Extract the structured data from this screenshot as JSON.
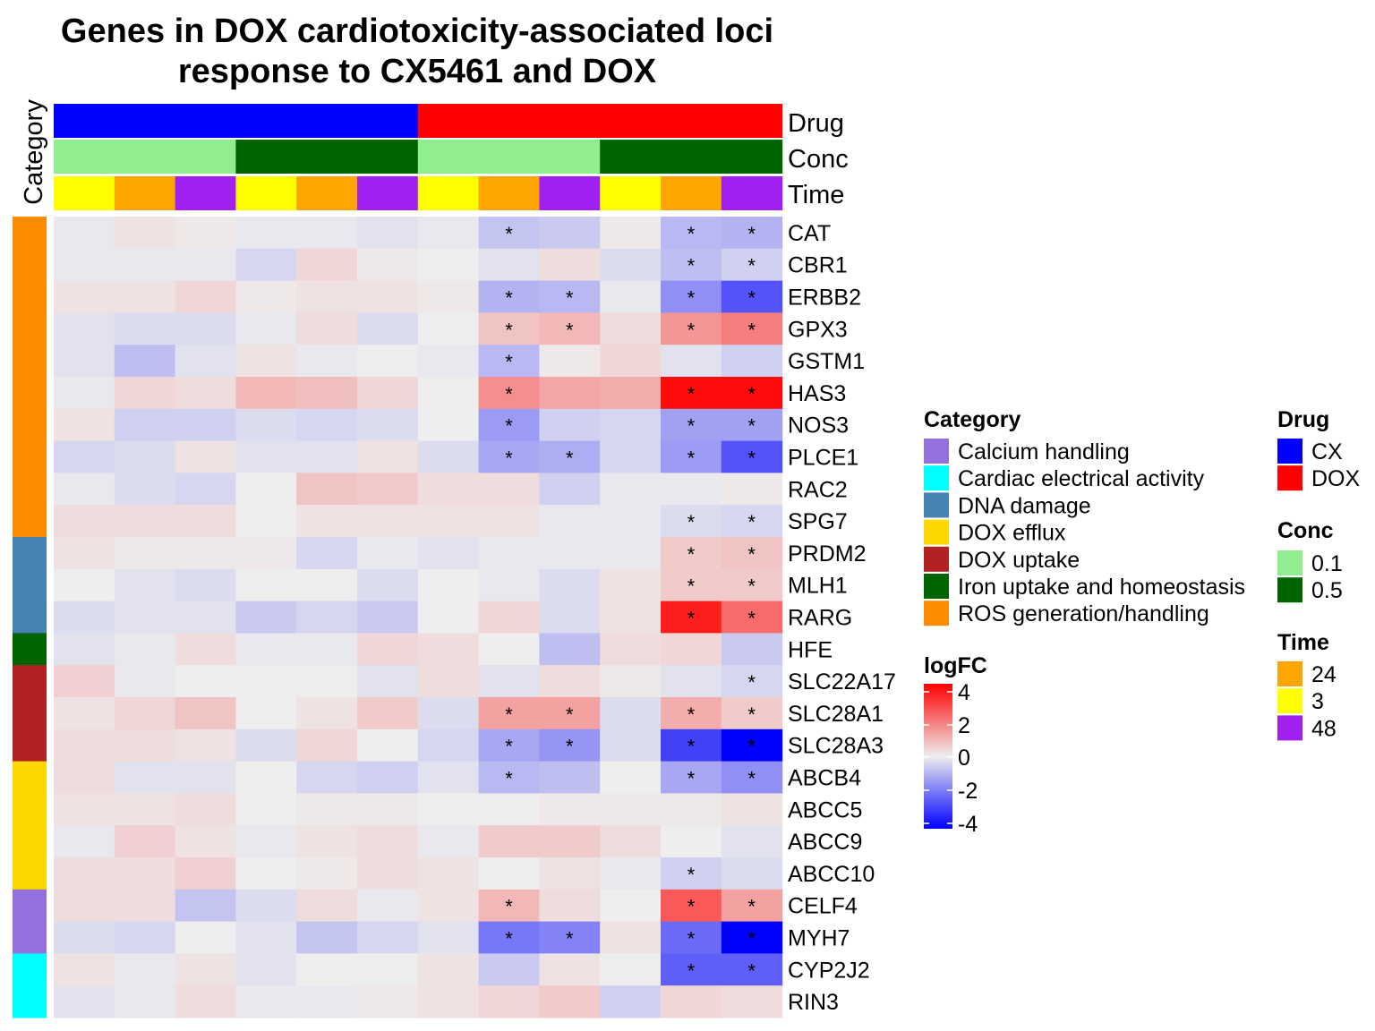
{
  "chart_data": {
    "type": "heatmap",
    "title_line1": "Genes in DOX cardiotoxicity-associated loci",
    "title_line2": "response to CX5461 and DOX",
    "category_axis_label": "Category",
    "annotation_labels": {
      "drug": "Drug",
      "conc": "Conc",
      "time": "Time"
    },
    "columns": [
      {
        "drug": "CX",
        "conc": "0.1",
        "time": "3"
      },
      {
        "drug": "CX",
        "conc": "0.1",
        "time": "24"
      },
      {
        "drug": "CX",
        "conc": "0.1",
        "time": "48"
      },
      {
        "drug": "CX",
        "conc": "0.5",
        "time": "3"
      },
      {
        "drug": "CX",
        "conc": "0.5",
        "time": "24"
      },
      {
        "drug": "CX",
        "conc": "0.5",
        "time": "48"
      },
      {
        "drug": "DOX",
        "conc": "0.1",
        "time": "3"
      },
      {
        "drug": "DOX",
        "conc": "0.1",
        "time": "24"
      },
      {
        "drug": "DOX",
        "conc": "0.1",
        "time": "48"
      },
      {
        "drug": "DOX",
        "conc": "0.5",
        "time": "3"
      },
      {
        "drug": "DOX",
        "conc": "0.5",
        "time": "24"
      },
      {
        "drug": "DOX",
        "conc": "0.5",
        "time": "48"
      }
    ],
    "rows": [
      {
        "gene": "CAT",
        "category": "ROS generation/handling",
        "values": [
          -0.1,
          0.2,
          0.1,
          -0.1,
          -0.1,
          -0.2,
          -0.1,
          -0.7,
          -0.6,
          0.1,
          -0.9,
          -1.0
        ],
        "sig": [
          0,
          0,
          0,
          0,
          0,
          0,
          0,
          1,
          0,
          0,
          1,
          1
        ]
      },
      {
        "gene": "CBR1",
        "category": "ROS generation/handling",
        "values": [
          -0.1,
          -0.1,
          -0.1,
          -0.4,
          0.4,
          0.1,
          0.0,
          -0.2,
          0.3,
          -0.3,
          -0.8,
          -0.5
        ],
        "sig": [
          0,
          0,
          0,
          0,
          0,
          0,
          0,
          0,
          0,
          0,
          1,
          1
        ]
      },
      {
        "gene": "ERBB2",
        "category": "ROS generation/handling",
        "values": [
          0.2,
          0.2,
          0.4,
          0.1,
          0.2,
          0.2,
          0.1,
          -1.0,
          -0.9,
          -0.1,
          -1.6,
          -2.6
        ],
        "sig": [
          0,
          0,
          0,
          0,
          0,
          0,
          0,
          1,
          1,
          0,
          1,
          1
        ]
      },
      {
        "gene": "GPX3",
        "category": "ROS generation/handling",
        "values": [
          -0.2,
          -0.3,
          -0.3,
          -0.1,
          0.3,
          -0.3,
          0.0,
          0.7,
          0.9,
          0.3,
          1.5,
          1.9
        ],
        "sig": [
          0,
          0,
          0,
          0,
          0,
          0,
          0,
          1,
          1,
          0,
          1,
          1
        ]
      },
      {
        "gene": "GSTM1",
        "category": "ROS generation/handling",
        "values": [
          -0.2,
          -0.8,
          -0.2,
          0.2,
          -0.1,
          0.0,
          -0.1,
          -0.9,
          0.1,
          0.4,
          -0.2,
          -0.5
        ],
        "sig": [
          0,
          0,
          0,
          0,
          0,
          0,
          0,
          1,
          0,
          0,
          0,
          0
        ]
      },
      {
        "gene": "HAS3",
        "category": "ROS generation/handling",
        "values": [
          -0.1,
          0.4,
          0.3,
          0.9,
          0.8,
          0.4,
          0.0,
          1.6,
          1.2,
          1.1,
          3.8,
          3.8
        ],
        "sig": [
          0,
          0,
          0,
          0,
          0,
          0,
          0,
          1,
          0,
          0,
          1,
          1
        ]
      },
      {
        "gene": "NOS3",
        "category": "ROS generation/handling",
        "values": [
          0.2,
          -0.5,
          -0.5,
          -0.3,
          -0.4,
          -0.3,
          0.0,
          -1.4,
          -0.5,
          -0.4,
          -1.3,
          -1.3
        ],
        "sig": [
          0,
          0,
          0,
          0,
          0,
          0,
          0,
          1,
          0,
          0,
          1,
          1
        ]
      },
      {
        "gene": "PLCE1",
        "category": "ROS generation/handling",
        "values": [
          -0.4,
          -0.3,
          0.2,
          -0.2,
          -0.2,
          0.2,
          -0.3,
          -1.2,
          -1.1,
          -0.4,
          -1.4,
          -2.6
        ],
        "sig": [
          0,
          0,
          0,
          0,
          0,
          0,
          0,
          1,
          1,
          0,
          1,
          1
        ]
      },
      {
        "gene": "RAC2",
        "category": "ROS generation/handling",
        "values": [
          -0.1,
          -0.3,
          -0.4,
          0.0,
          0.7,
          0.6,
          0.3,
          0.3,
          -0.5,
          -0.1,
          -0.1,
          0.1
        ],
        "sig": [
          0,
          0,
          0,
          0,
          0,
          0,
          0,
          0,
          0,
          0,
          0,
          0
        ]
      },
      {
        "gene": "SPG7",
        "category": "ROS generation/handling",
        "values": [
          0.3,
          0.3,
          0.3,
          0.0,
          0.2,
          0.2,
          0.2,
          0.2,
          -0.1,
          -0.1,
          -0.3,
          -0.4
        ],
        "sig": [
          0,
          0,
          0,
          0,
          0,
          0,
          0,
          0,
          0,
          0,
          1,
          1
        ]
      },
      {
        "gene": "PRDM2",
        "category": "DNA damage",
        "values": [
          0.2,
          0.1,
          0.1,
          0.1,
          -0.4,
          -0.1,
          -0.2,
          -0.1,
          -0.1,
          -0.1,
          0.6,
          0.7
        ],
        "sig": [
          0,
          0,
          0,
          0,
          0,
          0,
          0,
          0,
          0,
          0,
          1,
          1
        ]
      },
      {
        "gene": "MLH1",
        "category": "DNA damage",
        "values": [
          0.0,
          -0.2,
          -0.3,
          0.0,
          0.0,
          -0.3,
          0.0,
          -0.1,
          -0.3,
          0.2,
          0.6,
          0.6
        ],
        "sig": [
          0,
          0,
          0,
          0,
          0,
          0,
          0,
          0,
          0,
          0,
          1,
          1
        ]
      },
      {
        "gene": "RARG",
        "category": "DNA damage",
        "values": [
          -0.3,
          -0.2,
          -0.2,
          -0.6,
          -0.4,
          -0.6,
          0.0,
          0.4,
          -0.3,
          0.2,
          3.5,
          2.2
        ],
        "sig": [
          0,
          0,
          0,
          0,
          0,
          0,
          0,
          0,
          0,
          0,
          1,
          1
        ]
      },
      {
        "gene": "HFE",
        "category": "Iron uptake and homeostasis",
        "values": [
          -0.2,
          -0.1,
          0.3,
          -0.1,
          -0.1,
          0.4,
          0.3,
          0.0,
          -0.8,
          0.3,
          0.4,
          -0.6
        ],
        "sig": [
          0,
          0,
          0,
          0,
          0,
          0,
          0,
          0,
          0,
          0,
          0,
          0
        ]
      },
      {
        "gene": "SLC22A17",
        "category": "DOX uptake",
        "values": [
          0.5,
          -0.1,
          0.0,
          0.0,
          0.0,
          -0.2,
          0.3,
          -0.2,
          0.3,
          0.1,
          -0.2,
          -0.4
        ],
        "sig": [
          0,
          0,
          0,
          0,
          0,
          0,
          0,
          0,
          0,
          0,
          0,
          1
        ]
      },
      {
        "gene": "SLC28A1",
        "category": "DOX uptake",
        "values": [
          0.2,
          0.4,
          0.7,
          0.0,
          0.2,
          0.6,
          -0.3,
          1.3,
          1.3,
          -0.3,
          1.1,
          0.6
        ],
        "sig": [
          0,
          0,
          0,
          0,
          0,
          0,
          0,
          1,
          1,
          0,
          1,
          1
        ]
      },
      {
        "gene": "SLC28A3",
        "category": "DOX uptake",
        "values": [
          0.3,
          0.3,
          0.2,
          -0.3,
          0.4,
          0.0,
          -0.4,
          -1.2,
          -1.5,
          -0.3,
          -2.9,
          -4.2
        ],
        "sig": [
          0,
          0,
          0,
          0,
          0,
          0,
          0,
          1,
          1,
          0,
          1,
          1
        ]
      },
      {
        "gene": "ABCB4",
        "category": "DOX efflux",
        "values": [
          0.3,
          -0.2,
          -0.2,
          0.0,
          -0.4,
          -0.5,
          -0.2,
          -0.9,
          -0.8,
          0.0,
          -1.2,
          -1.6
        ],
        "sig": [
          0,
          0,
          0,
          0,
          0,
          0,
          0,
          1,
          0,
          0,
          1,
          1
        ]
      },
      {
        "gene": "ABCC5",
        "category": "DOX efflux",
        "values": [
          0.2,
          0.2,
          0.3,
          0.0,
          0.1,
          0.1,
          0.0,
          0.0,
          0.1,
          0.1,
          0.1,
          0.2
        ],
        "sig": [
          0,
          0,
          0,
          0,
          0,
          0,
          0,
          0,
          0,
          0,
          0,
          0
        ]
      },
      {
        "gene": "ABCC9",
        "category": "DOX efflux",
        "values": [
          -0.1,
          0.5,
          0.2,
          -0.1,
          0.2,
          0.3,
          -0.1,
          0.6,
          0.6,
          0.3,
          0.0,
          -0.2
        ],
        "sig": [
          0,
          0,
          0,
          0,
          0,
          0,
          0,
          0,
          0,
          0,
          0,
          0
        ]
      },
      {
        "gene": "ABCC10",
        "category": "DOX efflux",
        "values": [
          0.3,
          0.3,
          0.5,
          0.0,
          0.1,
          0.3,
          0.2,
          0.0,
          0.2,
          -0.1,
          -0.5,
          -0.3
        ],
        "sig": [
          0,
          0,
          0,
          0,
          0,
          0,
          0,
          0,
          0,
          0,
          1,
          0
        ]
      },
      {
        "gene": "CELF4",
        "category": "Calcium handling",
        "values": [
          0.3,
          0.3,
          -0.7,
          -0.3,
          0.3,
          -0.1,
          0.2,
          0.9,
          0.3,
          0.0,
          2.5,
          1.3
        ],
        "sig": [
          0,
          0,
          0,
          0,
          0,
          0,
          0,
          1,
          0,
          0,
          1,
          1
        ]
      },
      {
        "gene": "MYH7",
        "category": "Calcium handling",
        "values": [
          -0.3,
          -0.4,
          0.0,
          -0.2,
          -0.7,
          -0.4,
          -0.2,
          -2.0,
          -1.8,
          0.2,
          -2.2,
          -4.4
        ],
        "sig": [
          0,
          0,
          0,
          0,
          0,
          0,
          0,
          1,
          1,
          0,
          1,
          1
        ]
      },
      {
        "gene": "CYP2J2",
        "category": "Cardiac electrical activity",
        "values": [
          0.2,
          -0.1,
          0.2,
          -0.2,
          0.0,
          0.0,
          0.2,
          -0.6,
          0.2,
          0.0,
          -2.4,
          -2.4
        ],
        "sig": [
          0,
          0,
          0,
          0,
          0,
          0,
          0,
          0,
          0,
          0,
          1,
          1
        ]
      },
      {
        "gene": "RIN3",
        "category": "Cardiac electrical activity",
        "values": [
          -0.2,
          -0.1,
          0.3,
          -0.1,
          -0.1,
          0.1,
          0.2,
          0.4,
          0.6,
          -0.5,
          0.4,
          0.3
        ],
        "sig": [
          0,
          0,
          0,
          0,
          0,
          0,
          0,
          0,
          0,
          0,
          0,
          0
        ]
      }
    ],
    "legend_category_title": "Category",
    "categories": [
      {
        "name": "Calcium handling",
        "color": "#9370DB"
      },
      {
        "name": "Cardiac electrical activity",
        "color": "#00FFFF"
      },
      {
        "name": "DNA damage",
        "color": "#4682B4"
      },
      {
        "name": "DOX efflux",
        "color": "#FFD700"
      },
      {
        "name": "DOX uptake",
        "color": "#B22222"
      },
      {
        "name": "Iron uptake and homeostasis",
        "color": "#006400"
      },
      {
        "name": "ROS generation/handling",
        "color": "#FF8C00"
      }
    ],
    "legend_drug_title": "Drug",
    "drug_levels": [
      {
        "name": "CX",
        "color": "#0000FF"
      },
      {
        "name": "DOX",
        "color": "#FF0000"
      }
    ],
    "legend_conc_title": "Conc",
    "conc_levels": [
      {
        "name": "0.1",
        "color": "#90EE90"
      },
      {
        "name": "0.5",
        "color": "#006400"
      }
    ],
    "legend_time_title": "Time",
    "time_levels": [
      {
        "name": "24",
        "color": "#FFA500"
      },
      {
        "name": "3",
        "color": "#FFFF00"
      },
      {
        "name": "48",
        "color": "#A020F0"
      }
    ],
    "legend_logfc_title": "logFC",
    "logfc_ticks": [
      "4",
      "2",
      "0",
      "-2",
      "-4"
    ],
    "color_scale": {
      "min": -4,
      "mid": 0,
      "max": 4,
      "low": "#0000FF",
      "midcolor": "#EEEEEE",
      "high": "#FF0000"
    },
    "sig_symbol": "*"
  }
}
